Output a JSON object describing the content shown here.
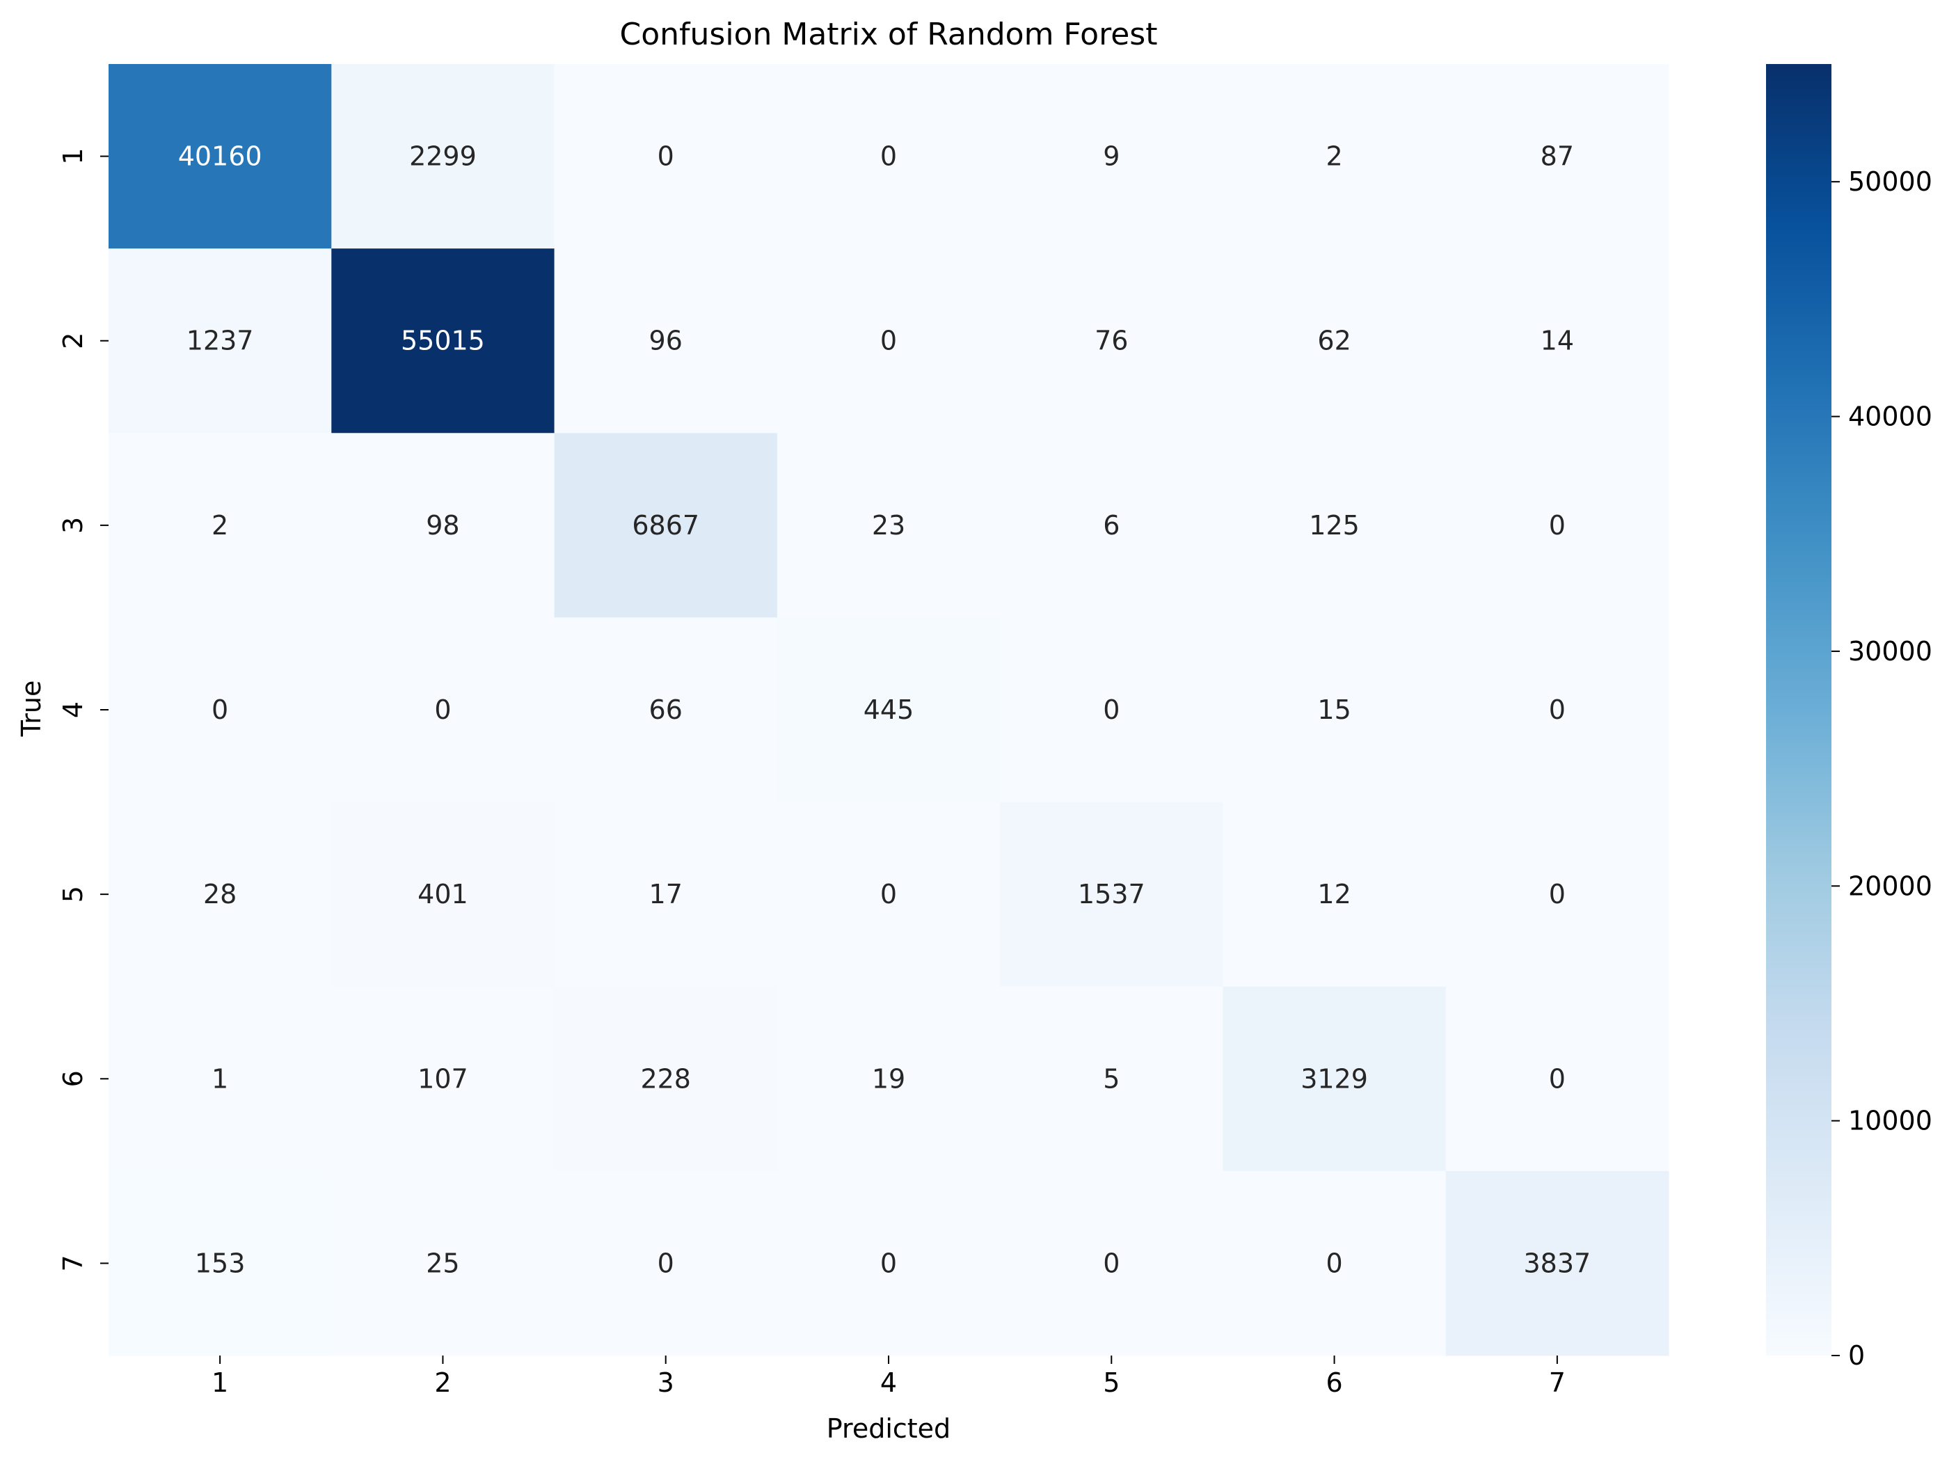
{
  "chart_data": {
    "type": "heatmap",
    "title": "Confusion Matrix of Random Forest",
    "xlabel": "Predicted",
    "ylabel": "True",
    "x_categories": [
      "1",
      "2",
      "3",
      "4",
      "5",
      "6",
      "7"
    ],
    "y_categories": [
      "1",
      "2",
      "3",
      "4",
      "5",
      "6",
      "7"
    ],
    "matrix": [
      [
        40160,
        2299,
        0,
        0,
        9,
        2,
        87
      ],
      [
        1237,
        55015,
        96,
        0,
        76,
        62,
        14
      ],
      [
        2,
        98,
        6867,
        23,
        6,
        125,
        0
      ],
      [
        0,
        0,
        66,
        445,
        0,
        15,
        0
      ],
      [
        28,
        401,
        17,
        0,
        1537,
        12,
        0
      ],
      [
        1,
        107,
        228,
        19,
        5,
        3129,
        0
      ],
      [
        153,
        25,
        0,
        0,
        0,
        0,
        3837
      ]
    ],
    "colormap": "Blues",
    "colorbar": {
      "range": [
        0,
        55015
      ],
      "ticks": [
        0,
        10000,
        20000,
        30000,
        40000,
        50000
      ],
      "tick_labels": [
        "0",
        "10000",
        "20000",
        "30000",
        "40000",
        "50000"
      ]
    },
    "grid": false,
    "legend": "colorbar-right"
  }
}
